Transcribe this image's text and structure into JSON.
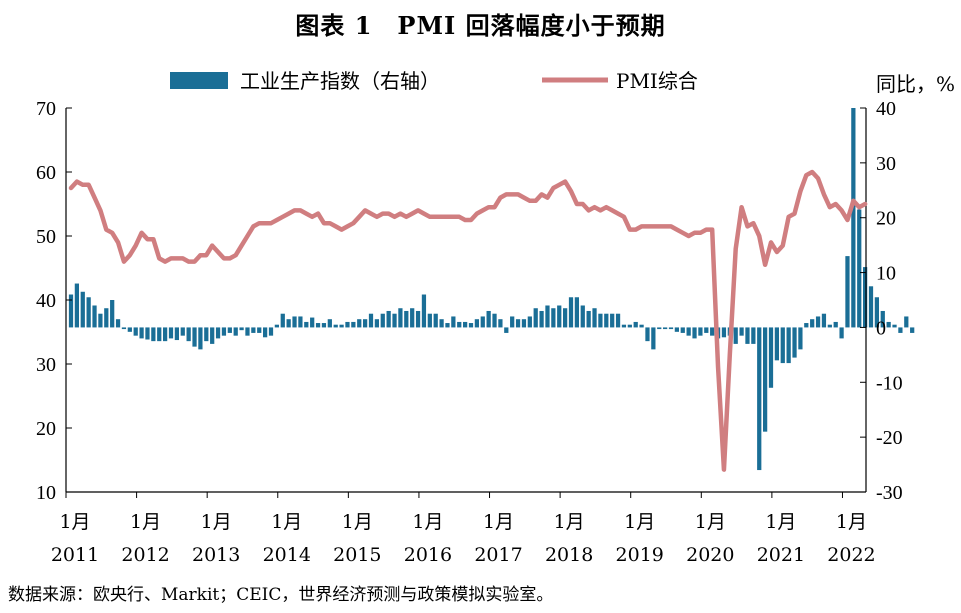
{
  "title": "图表 1　PMI 回落幅度小于预期",
  "source": "数据来源：欧央行、Markit；CEIC，世界经济预测与政策模拟实验室。",
  "chart_data": {
    "type": "bar+line",
    "left_axis": {
      "ylim": [
        10,
        70
      ],
      "ticks": [
        "70",
        "60",
        "50",
        "40",
        "30",
        "20",
        "10"
      ]
    },
    "right_axis": {
      "label": "同比，%",
      "ylim": [
        -30,
        40
      ],
      "ticks": [
        "40",
        "30",
        "20",
        "10",
        "0",
        "-10",
        "-20",
        "-30"
      ]
    },
    "x_tick_months": [
      "1月",
      "1月",
      "1月",
      "1月",
      "1月",
      "1月",
      "1月",
      "1月",
      "1月",
      "1月",
      "1月",
      "1月"
    ],
    "x_tick_years": [
      "2011",
      "2012",
      "2013",
      "2014",
      "2015",
      "2016",
      "2017",
      "2018",
      "2019",
      "2020",
      "2021",
      "2022"
    ],
    "legend": {
      "position": "top",
      "bar_label": "工业生产指数（右轴）",
      "line_label": "PMI综合"
    },
    "start": "2011-01",
    "bar_series": {
      "name": "工业生产指数（右轴）",
      "axis": "right",
      "color": "#1a6e96",
      "values": [
        6.0,
        8.0,
        6.5,
        5.5,
        4.0,
        2.5,
        3.5,
        5.0,
        1.5,
        -0.3,
        -0.8,
        -1.5,
        -2.0,
        -2.2,
        -2.5,
        -2.5,
        -2.5,
        -2.0,
        -2.3,
        -1.5,
        -2.5,
        -3.5,
        -4.0,
        -2.5,
        -3.0,
        -2.0,
        -1.5,
        -1.0,
        -1.5,
        -0.5,
        -1.5,
        -1.0,
        -1.0,
        -1.8,
        -1.5,
        0.5,
        2.5,
        1.5,
        2.0,
        2.0,
        1.0,
        1.8,
        0.8,
        0.8,
        1.5,
        0.5,
        0.5,
        1.0,
        1.0,
        1.5,
        1.5,
        2.5,
        1.5,
        2.5,
        3.0,
        2.5,
        3.5,
        3.0,
        3.5,
        3.0,
        6.0,
        2.5,
        2.5,
        1.5,
        0.8,
        2.0,
        1.0,
        1.0,
        0.8,
        1.5,
        2.0,
        3.0,
        2.5,
        1.5,
        -1.0,
        2.0,
        1.5,
        1.5,
        2.0,
        3.5,
        3.0,
        4.0,
        3.5,
        4.0,
        3.5,
        5.5,
        5.5,
        4.0,
        3.0,
        3.5,
        2.5,
        2.5,
        2.5,
        2.5,
        0.5,
        0.5,
        1.0,
        0.5,
        -2.5,
        -4.0,
        -0.3,
        -0.3,
        -0.3,
        -0.8,
        -1.0,
        -1.5,
        -2.0,
        -1.5,
        -1.0,
        -1.5,
        -2.0,
        -1.8,
        -1.5,
        -3.0,
        -1.5,
        -3.0,
        -3.0,
        -26.0,
        -19.0,
        -11.0,
        -6.0,
        -6.5,
        -6.5,
        -5.5,
        -4.0,
        0.8,
        1.5,
        2.0,
        2.5,
        0.5,
        1.0,
        -2.0,
        13.0,
        40.0,
        21.5,
        11.0,
        7.5,
        5.5,
        3.0,
        1.0,
        0.5,
        -1.0,
        2.0,
        -1.0
      ]
    },
    "line_series": {
      "name": "PMI综合",
      "axis": "left",
      "color": "#d07e80",
      "values": [
        57.5,
        58.5,
        58.0,
        58.0,
        56.0,
        54.0,
        51.0,
        50.5,
        49.0,
        46.0,
        47.0,
        48.5,
        50.5,
        49.5,
        49.5,
        46.5,
        46.0,
        46.5,
        46.5,
        46.5,
        46.0,
        46.0,
        47.0,
        47.0,
        48.5,
        47.5,
        46.5,
        46.5,
        47.0,
        48.5,
        50.0,
        51.5,
        52.0,
        52.0,
        52.0,
        52.5,
        53.0,
        53.5,
        54.0,
        54.0,
        53.5,
        53.0,
        53.5,
        52.0,
        52.0,
        51.5,
        51.0,
        51.5,
        52.0,
        53.0,
        54.0,
        53.5,
        53.0,
        53.5,
        53.5,
        53.0,
        53.5,
        53.0,
        53.5,
        54.0,
        53.5,
        53.0,
        53.0,
        53.0,
        53.0,
        53.0,
        53.0,
        52.5,
        52.5,
        53.5,
        54.0,
        54.5,
        54.5,
        56.0,
        56.5,
        56.5,
        56.5,
        56.0,
        55.5,
        55.5,
        56.5,
        56.0,
        57.5,
        58.0,
        58.5,
        57.0,
        55.0,
        55.0,
        54.0,
        54.5,
        54.0,
        54.5,
        54.0,
        53.5,
        53.0,
        51.0,
        51.0,
        51.5,
        51.5,
        51.5,
        51.5,
        51.5,
        51.5,
        51.0,
        50.5,
        50.0,
        50.5,
        50.5,
        51.0,
        51.0,
        29.5,
        13.5,
        31.5,
        48.0,
        54.5,
        51.5,
        52.0,
        50.0,
        45.5,
        49.0,
        47.5,
        48.5,
        53.0,
        53.5,
        57.0,
        59.5,
        60.0,
        59.0,
        56.5,
        54.5,
        55.0,
        54.0,
        52.5,
        55.5,
        54.5,
        55.0
      ]
    }
  }
}
